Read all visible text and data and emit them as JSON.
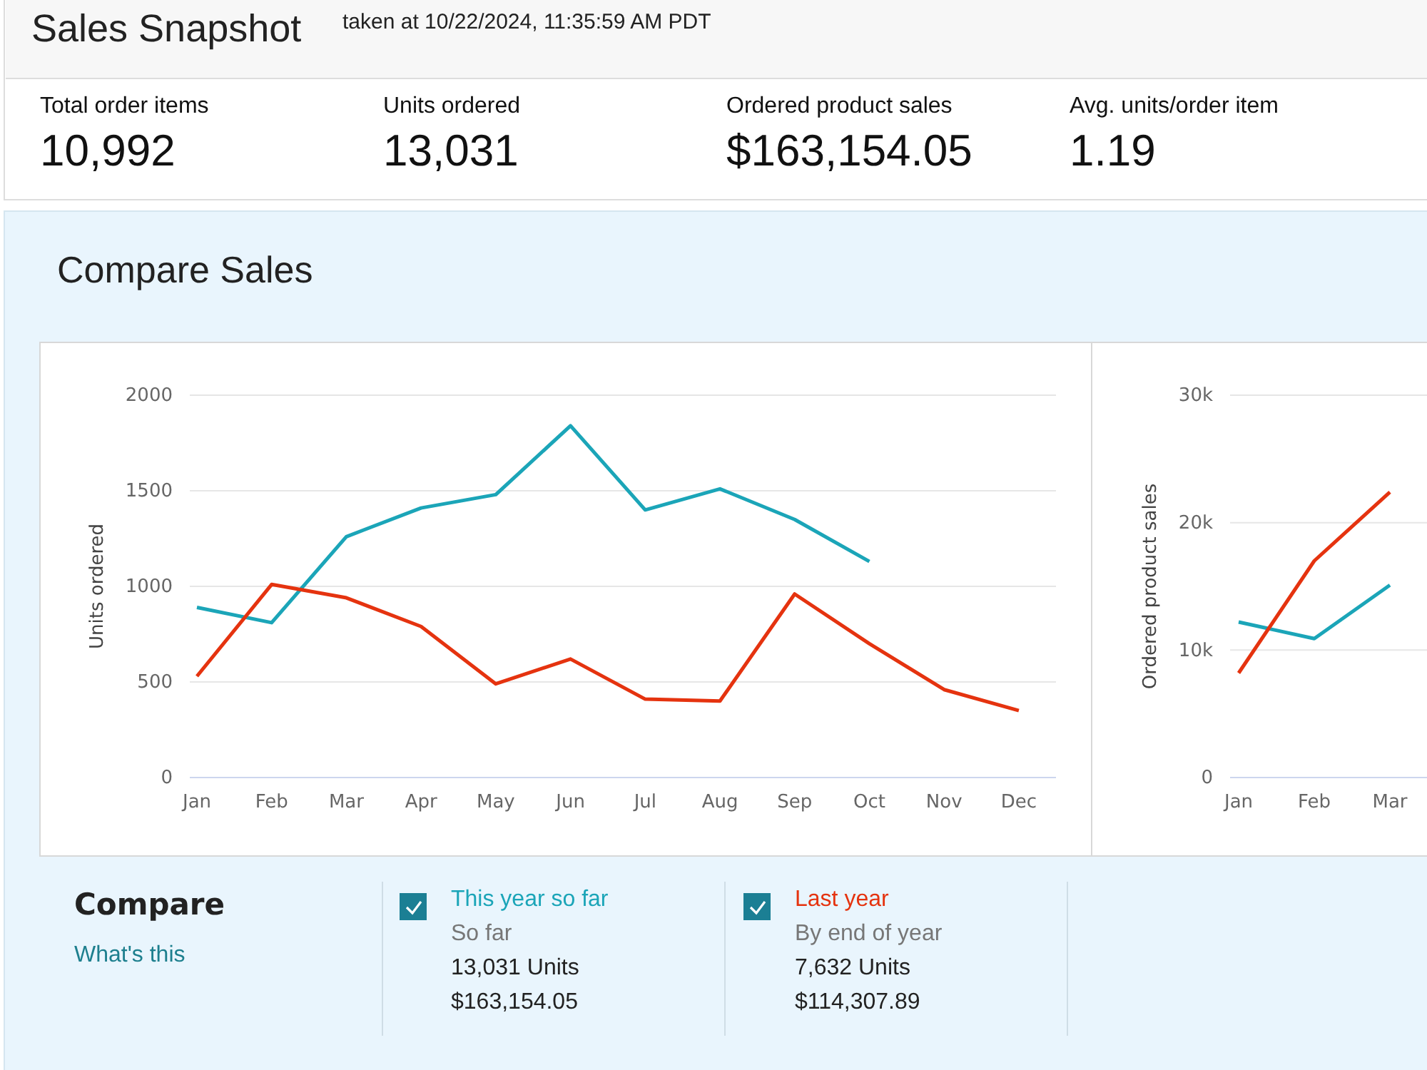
{
  "chart_data": [
    {
      "type": "other",
      "title": "Sales Snapshot",
      "subtitle": "taken at 10/22/2024, 11:35:59 AM PDT",
      "annotations": [
        "Total order items",
        "10,992",
        "Units ordered",
        "13,031",
        "Ordered product sales",
        "$163,154.05",
        "Avg. units/order item",
        "1.19"
      ]
    },
    {
      "type": "line",
      "title": "Compare Sales",
      "ylabel": "Units ordered",
      "categories": [
        "Jan",
        "Feb",
        "Mar",
        "Apr",
        "May",
        "Jun",
        "Jul",
        "Aug",
        "Sep",
        "Oct",
        "Nov",
        "Dec"
      ],
      "ylim": [
        0,
        2000
      ],
      "yticks": [
        0,
        500,
        1000,
        1500,
        2000
      ],
      "grid": "y",
      "legend": "bottom",
      "legend_title": "Compare",
      "marker": "none",
      "line_style": "solid",
      "series": [
        {
          "name": "This year so far",
          "color": "#1ba5b8",
          "values": [
            890,
            810,
            1260,
            1410,
            1480,
            1840,
            1400,
            1510,
            1350,
            1130,
            null,
            null
          ]
        },
        {
          "name": "Last year",
          "color": "#e5330f",
          "values": [
            530,
            1010,
            940,
            790,
            490,
            620,
            410,
            400,
            960,
            700,
            460,
            350
          ]
        }
      ],
      "annotations": [
        "What's this",
        "So far",
        "13,031 Units",
        "$163,154.05",
        "By end of year",
        "7,632 Units",
        "$114,307.89"
      ]
    },
    {
      "type": "line",
      "ylabel": "Ordered product sales",
      "categories": [
        "Jan",
        "Feb",
        "Mar"
      ],
      "ylim": [
        0,
        30000
      ],
      "yticks": [
        0,
        {
          "value": 10000,
          "label": "10k"
        },
        {
          "value": 20000,
          "label": "20k"
        },
        {
          "value": 30000,
          "label": "30k"
        }
      ],
      "grid": "y",
      "marker": "none",
      "line_style": "solid",
      "series": [
        {
          "color": "#1ba5b8",
          "values": [
            12200,
            10900,
            15100
          ]
        },
        {
          "color": "#e5330f",
          "values": [
            8200,
            17000,
            22400
          ]
        }
      ]
    }
  ]
}
